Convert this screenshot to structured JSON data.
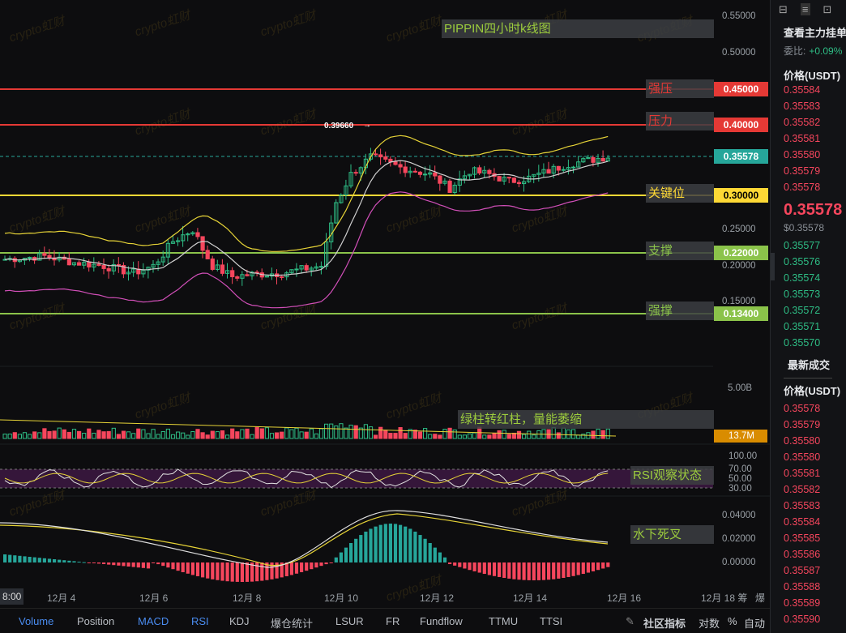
{
  "chart_title": "PIPPIN四小时k线图",
  "annotations": {
    "strong_resistance": "强压",
    "resistance": "压力",
    "key_level": "关键位",
    "support": "支撑",
    "strong_support": "强撑",
    "volume_note": "绿柱转红柱，量能萎缩",
    "rsi_note": "RSI观察状态",
    "macd_note": "水下死叉"
  },
  "high_marker": "0.39660",
  "price_tags": {
    "strong_resistance": "0.45000",
    "resistance": "0.40000",
    "current": "0.35578",
    "key_level": "0.30000",
    "support": "0.22000",
    "strong_support": "0.13400"
  },
  "colors": {
    "strong_resistance": "#e53935",
    "resistance": "#e53935",
    "current": "#26a69a",
    "key_level": "#fdd835",
    "support": "#8bc34a",
    "strong_support": "#8bc34a",
    "up": "#2ebd85",
    "down": "#f6465d"
  },
  "price_axis": [
    "0.55000",
    "0.50000",
    "0.25000",
    "0.20000",
    "0.15000"
  ],
  "volume_axis": {
    "top": "5.00B",
    "current": "13.7M"
  },
  "rsi_axis": [
    "100.00",
    "70.00",
    "50.00",
    "30.00"
  ],
  "macd_axis": [
    "0.04000",
    "0.02000",
    "0.00000"
  ],
  "date_axis": {
    "first": "8:00",
    "labels": [
      "12月 4",
      "12月 6",
      "12月 8",
      "12月 10",
      "12月 12",
      "12月 14",
      "12月 16",
      "12月 18 筹",
      "爆"
    ]
  },
  "watermark": "crypto虹财",
  "bottom_tabs": [
    "Volume",
    "Position",
    "MACD",
    "RSI",
    "KDJ",
    "爆仓统计",
    "LSUR",
    "FR",
    "Fundflow",
    "TTMU",
    "TTSI"
  ],
  "bottom_right": {
    "community": "社区指标",
    "log": "对数",
    "percent": "%",
    "auto": "自动"
  },
  "side_panel": {
    "title": "查看主力挂单",
    "ratio_label": "委比:",
    "ratio_value": "+0.09%",
    "price_header": "价格(USDT)",
    "asks": [
      "0.35584",
      "0.35583",
      "0.35582",
      "0.35581",
      "0.35580",
      "0.35579",
      "0.35578"
    ],
    "last_price": "0.35578",
    "last_usd": "$0.35578",
    "bids": [
      "0.35577",
      "0.35576",
      "0.35574",
      "0.35573",
      "0.35572",
      "0.35571",
      "0.35570"
    ],
    "trades_title": "最新成交",
    "trades_header": "价格(USDT)",
    "trades": [
      "0.35578",
      "0.35579",
      "0.35580",
      "0.35580",
      "0.35581",
      "0.35582",
      "0.35583",
      "0.35584",
      "0.35585",
      "0.35586",
      "0.35587",
      "0.35588",
      "0.35589",
      "0.35590"
    ]
  }
}
